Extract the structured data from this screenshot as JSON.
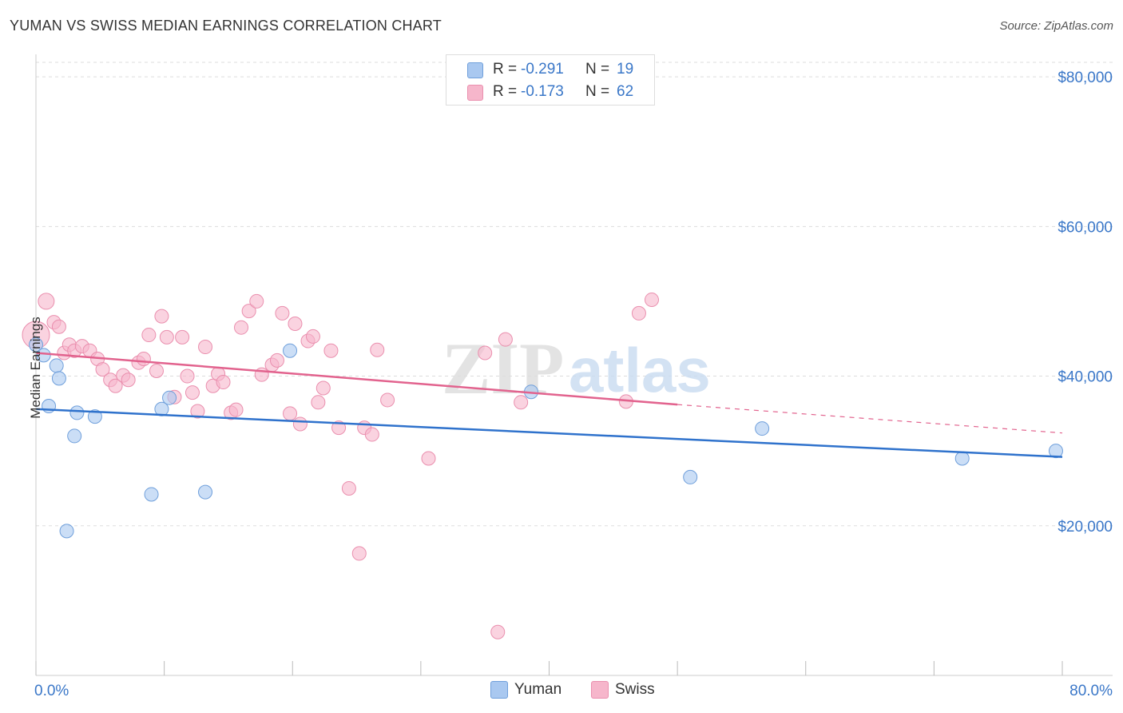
{
  "header": {
    "title": "YUMAN VS SWISS MEDIAN EARNINGS CORRELATION CHART",
    "source": "Source: ZipAtlas.com"
  },
  "legend": {
    "rows": [
      {
        "r_label": "R = ",
        "r_value": "-0.291",
        "n_label": "N = ",
        "n_value": "19"
      },
      {
        "r_label": "R = ",
        "r_value": "-0.173",
        "n_label": "N = ",
        "n_value": "62"
      }
    ]
  },
  "bottom_legend": {
    "series1": "Yuman",
    "series2": "Swiss"
  },
  "watermark": "ZIPatlas",
  "colors": {
    "yuman_fill": "#a9c8f0",
    "yuman_stroke": "#6f9fdb",
    "yuman_line": "#2f72cc",
    "swiss_fill": "#f6b6cb",
    "swiss_stroke": "#ea8fae",
    "swiss_line": "#e2638e",
    "axis_text": "#3a77c8"
  },
  "chart_data": {
    "type": "scatter",
    "title": "YUMAN VS SWISS MEDIAN EARNINGS CORRELATION CHART",
    "xlabel": "",
    "ylabel": "Median Earnings",
    "xlim": [
      0,
      80
    ],
    "ylim": [
      0,
      83000
    ],
    "x_tick_labels": [
      "0.0%",
      "80.0%"
    ],
    "y_ticks": [
      20000,
      40000,
      60000,
      80000
    ],
    "y_tick_labels": [
      "$20,000",
      "$40,000",
      "$60,000",
      "$80,000"
    ],
    "series": [
      {
        "name": "Yuman",
        "points": [
          [
            0.0,
            44200
          ],
          [
            0.6,
            42800
          ],
          [
            1.0,
            36000
          ],
          [
            1.6,
            41400
          ],
          [
            1.8,
            39700
          ],
          [
            2.4,
            19300
          ],
          [
            3.0,
            32000
          ],
          [
            3.2,
            35100
          ],
          [
            4.6,
            34600
          ],
          [
            9.0,
            24200
          ],
          [
            9.8,
            35600
          ],
          [
            10.4,
            37100
          ],
          [
            13.2,
            24500
          ],
          [
            19.8,
            43400
          ],
          [
            38.6,
            37900
          ],
          [
            51.0,
            26500
          ],
          [
            56.6,
            33000
          ],
          [
            72.2,
            29000
          ],
          [
            79.5,
            30000
          ]
        ],
        "trend": {
          "x0": 0,
          "y0": 35600,
          "x1": 80,
          "y1": 29200
        }
      },
      {
        "name": "Swiss",
        "points": [
          [
            0.0,
            45500
          ],
          [
            0.8,
            50000
          ],
          [
            1.4,
            47200
          ],
          [
            1.8,
            46600
          ],
          [
            2.2,
            43100
          ],
          [
            2.6,
            44200
          ],
          [
            3.0,
            43400
          ],
          [
            3.6,
            44000
          ],
          [
            4.2,
            43400
          ],
          [
            4.8,
            42300
          ],
          [
            5.2,
            40900
          ],
          [
            5.8,
            39500
          ],
          [
            6.2,
            38700
          ],
          [
            6.8,
            40100
          ],
          [
            7.2,
            39500
          ],
          [
            8.0,
            41800
          ],
          [
            8.4,
            42300
          ],
          [
            8.8,
            45500
          ],
          [
            9.4,
            40700
          ],
          [
            9.8,
            48000
          ],
          [
            10.2,
            45200
          ],
          [
            10.8,
            37200
          ],
          [
            11.4,
            45200
          ],
          [
            11.8,
            40000
          ],
          [
            12.2,
            37800
          ],
          [
            12.6,
            35300
          ],
          [
            13.2,
            43900
          ],
          [
            13.8,
            38700
          ],
          [
            14.2,
            40300
          ],
          [
            14.6,
            39200
          ],
          [
            15.2,
            35100
          ],
          [
            15.6,
            35500
          ],
          [
            16.0,
            46500
          ],
          [
            16.6,
            48700
          ],
          [
            17.2,
            50000
          ],
          [
            17.6,
            40200
          ],
          [
            18.4,
            41500
          ],
          [
            18.8,
            42100
          ],
          [
            19.2,
            48400
          ],
          [
            19.8,
            35000
          ],
          [
            20.2,
            47000
          ],
          [
            20.6,
            33600
          ],
          [
            21.2,
            44700
          ],
          [
            21.6,
            45300
          ],
          [
            22.0,
            36500
          ],
          [
            22.4,
            38400
          ],
          [
            23.0,
            43400
          ],
          [
            23.6,
            33100
          ],
          [
            24.4,
            25000
          ],
          [
            25.2,
            16300
          ],
          [
            25.6,
            33100
          ],
          [
            26.2,
            32200
          ],
          [
            26.6,
            43500
          ],
          [
            27.4,
            36800
          ],
          [
            30.6,
            29000
          ],
          [
            35.0,
            43100
          ],
          [
            36.0,
            5800
          ],
          [
            36.6,
            44900
          ],
          [
            37.8,
            36500
          ],
          [
            46.0,
            36600
          ],
          [
            47.0,
            48400
          ],
          [
            48.0,
            50200
          ]
        ],
        "trend": {
          "x0": 0,
          "y0": 43100,
          "x1": 50,
          "y1": 36200,
          "dash_to_x": 80,
          "dash_to_y": 32400
        }
      }
    ]
  }
}
